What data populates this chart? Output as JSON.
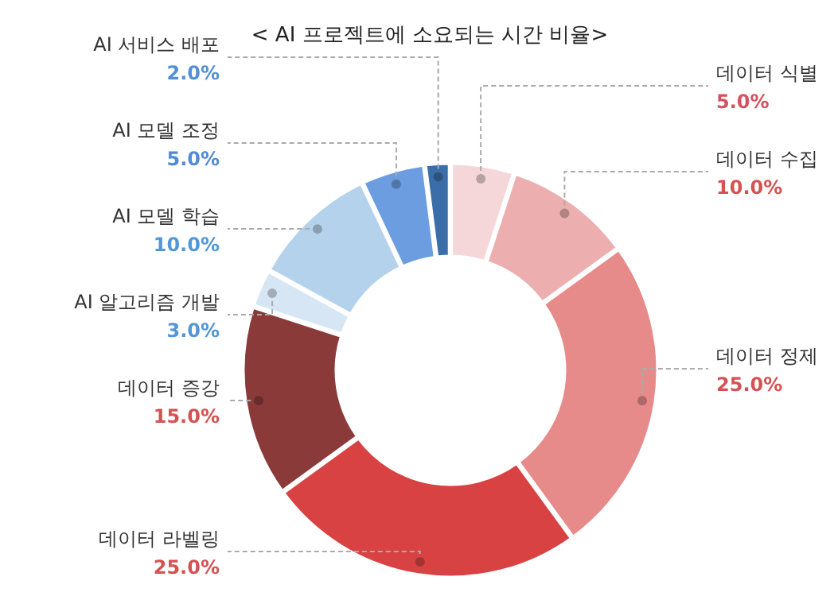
{
  "chart_data": {
    "type": "donut",
    "title": "< AI 프로젝트에 소요되는 시간 비율>",
    "categories": [
      "데이터 식별",
      "데이터 수집",
      "데이터 정제",
      "데이터 라벨링",
      "데이터 증강",
      "AI 알고리즘 개발",
      "AI 모델 학습",
      "AI 모델 조정",
      "AI 서비스 배포"
    ],
    "values": [
      5,
      10,
      25,
      25,
      15,
      3,
      10,
      5,
      2
    ],
    "value_labels": [
      "5.0%",
      "10.0%",
      "25.0%",
      "25.0%",
      "15.0%",
      "3.0%",
      "10.0%",
      "5.0%",
      "2.0%"
    ],
    "colors": [
      "#f5d6d9",
      "#ecaeae",
      "#e68a8a",
      "#d94242",
      "#8b3a3a",
      "#d7e6f4",
      "#b5d2ec",
      "#6b9de0",
      "#3b6ea8"
    ]
  }
}
